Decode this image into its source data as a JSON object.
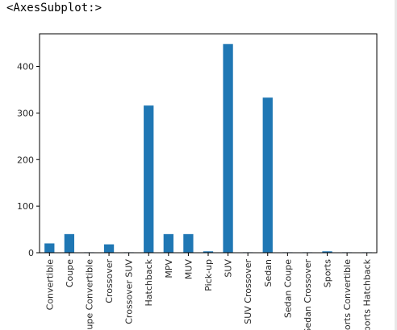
{
  "output": {
    "repr_text": "<AxesSubplot:>"
  },
  "chart_data": {
    "type": "bar",
    "title": "",
    "xlabel": "",
    "ylabel": "",
    "categories": [
      "Convertible",
      "Coupe",
      "Coupe Convertible",
      "Crossover",
      "Crossover SUV",
      "Hatchback",
      "MPV",
      "MUV",
      "Pick-up",
      "SUV",
      "SUV Crossover",
      "Sedan",
      "Sedan Coupe",
      "Sedan Crossover",
      "Sports",
      "Sports Convertible",
      "Sports Hatchback"
    ],
    "values": [
      20,
      40,
      1,
      18,
      1,
      316,
      40,
      40,
      3,
      448,
      1,
      333,
      1,
      1,
      3,
      1,
      1
    ],
    "ylim": [
      0,
      470
    ],
    "yticks": [
      0,
      100,
      200,
      300,
      400
    ],
    "bar_color": "#1f77b4",
    "grid": false,
    "legend": "none"
  }
}
